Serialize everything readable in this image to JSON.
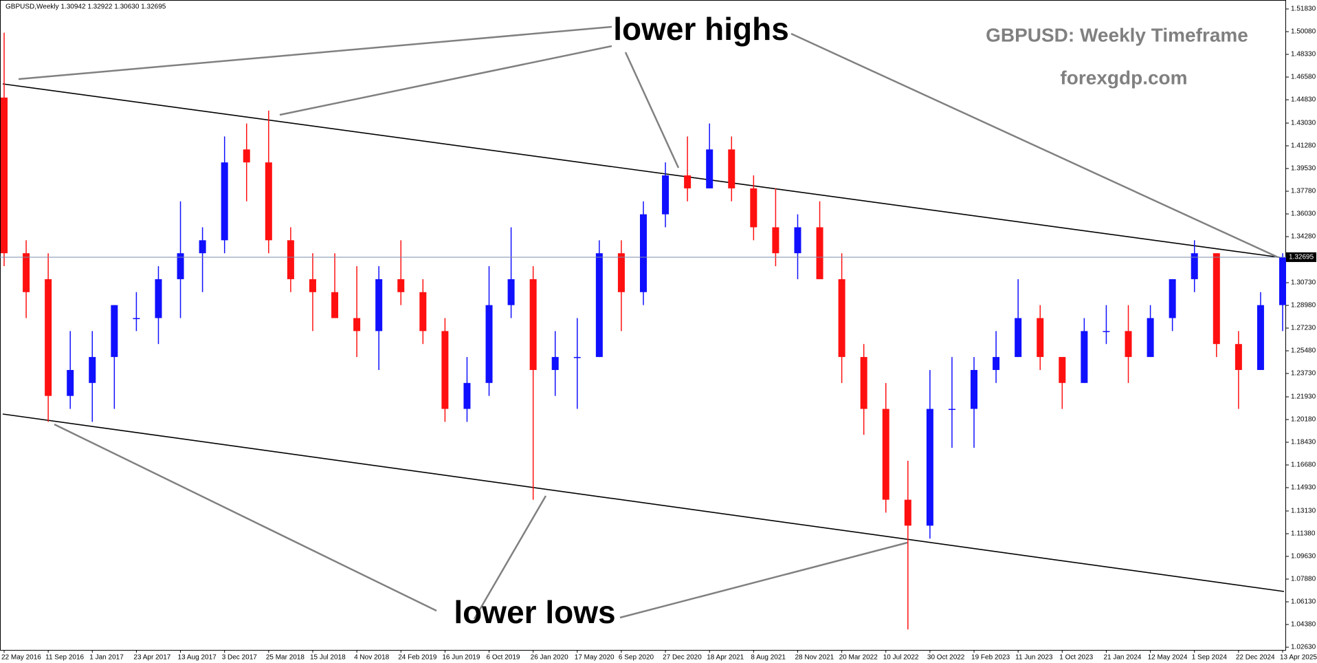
{
  "header": "GBPUSD,Weekly  1.30942 1.32922 1.30630 1.32695",
  "chart_data": {
    "type": "candlestick",
    "title": "GBPUSD: Weekly Timeframe",
    "subtitle": "forexgdp.com",
    "annotations": [
      "lower highs",
      "lower lows"
    ],
    "categories": [
      "22 May 2016",
      null,
      "11 Sep 2016",
      null,
      "1 Jan 2017",
      null,
      "23 Apr 2017",
      null,
      "13 Aug 2017",
      null,
      "3 Dec 2017",
      null,
      "25 Mar 2018",
      null,
      "15 Jul 2018",
      null,
      "4 Nov 2018",
      null,
      "24 Feb 2019",
      null,
      "16 Jun 2019",
      null,
      "6 Oct 2019",
      null,
      "26 Jan 2020",
      null,
      "17 May 2020",
      null,
      "6 Sep 2020",
      null,
      "27 Dec 2020",
      null,
      "18 Apr 2021",
      null,
      "8 Aug 2021",
      null,
      "28 Nov 2021",
      null,
      "20 Mar 2022",
      null,
      "10 Jul 2022",
      null,
      "30 Oct 2022",
      null,
      "19 Feb 2023",
      null,
      "11 Jun 2023",
      null,
      "1 Oct 2023",
      null,
      "21 Jan 2024",
      null,
      "12 May 2024",
      null,
      "1 Sep 2024",
      null,
      "22 Dec 2024",
      null,
      "13 Apr 2025"
    ],
    "open": [
      1.45,
      1.33,
      1.31,
      1.22,
      1.23,
      1.25,
      1.28,
      1.28,
      1.31,
      1.33,
      1.34,
      1.41,
      1.4,
      1.34,
      1.31,
      1.3,
      1.28,
      1.27,
      1.31,
      1.3,
      1.27,
      1.21,
      1.23,
      1.29,
      1.31,
      1.24,
      1.25,
      1.25,
      1.33,
      1.3,
      1.36,
      1.39,
      1.38,
      1.41,
      1.38,
      1.35,
      1.33,
      1.35,
      1.31,
      1.25,
      1.21,
      1.14,
      1.12,
      1.21,
      1.21,
      1.24,
      1.25,
      1.28,
      1.25,
      1.23,
      1.27,
      1.27,
      1.25,
      1.28,
      1.31,
      1.33,
      1.26,
      1.24,
      1.29
    ],
    "high": [
      1.5,
      1.34,
      1.33,
      1.27,
      1.27,
      1.29,
      1.3,
      1.32,
      1.37,
      1.35,
      1.42,
      1.43,
      1.44,
      1.35,
      1.33,
      1.33,
      1.32,
      1.32,
      1.34,
      1.31,
      1.28,
      1.25,
      1.32,
      1.35,
      1.32,
      1.27,
      1.28,
      1.34,
      1.34,
      1.37,
      1.4,
      1.42,
      1.43,
      1.42,
      1.39,
      1.38,
      1.36,
      1.37,
      1.33,
      1.26,
      1.23,
      1.17,
      1.24,
      1.25,
      1.25,
      1.27,
      1.31,
      1.29,
      1.25,
      1.28,
      1.29,
      1.29,
      1.29,
      1.31,
      1.34,
      1.33,
      1.27,
      1.3,
      1.33
    ],
    "low": [
      1.32,
      1.28,
      1.2,
      1.21,
      1.2,
      1.21,
      1.27,
      1.26,
      1.28,
      1.3,
      1.33,
      1.37,
      1.33,
      1.3,
      1.27,
      1.28,
      1.25,
      1.24,
      1.29,
      1.26,
      1.2,
      1.2,
      1.22,
      1.28,
      1.14,
      1.22,
      1.21,
      1.25,
      1.27,
      1.29,
      1.35,
      1.37,
      1.38,
      1.37,
      1.34,
      1.32,
      1.31,
      1.31,
      1.23,
      1.19,
      1.13,
      1.04,
      1.11,
      1.18,
      1.18,
      1.23,
      1.25,
      1.24,
      1.21,
      1.23,
      1.26,
      1.23,
      1.25,
      1.27,
      1.3,
      1.25,
      1.21,
      1.24,
      1.27
    ],
    "close": [
      1.33,
      1.3,
      1.22,
      1.24,
      1.25,
      1.29,
      1.28,
      1.31,
      1.33,
      1.34,
      1.4,
      1.4,
      1.34,
      1.31,
      1.3,
      1.28,
      1.27,
      1.31,
      1.3,
      1.27,
      1.21,
      1.23,
      1.29,
      1.31,
      1.24,
      1.25,
      1.25,
      1.33,
      1.3,
      1.36,
      1.39,
      1.38,
      1.41,
      1.38,
      1.35,
      1.33,
      1.35,
      1.31,
      1.25,
      1.21,
      1.14,
      1.12,
      1.21,
      1.21,
      1.24,
      1.25,
      1.28,
      1.25,
      1.23,
      1.27,
      1.27,
      1.25,
      1.28,
      1.31,
      1.33,
      1.26,
      1.24,
      1.29,
      1.32695
    ],
    "up_color": "#1010ff",
    "down_color": "#ff1010",
    "current_price": 1.32695,
    "ylim": [
      1.0242,
      1.5252
    ],
    "yticks": [
      {
        "value": 1.0263,
        "label": "1.02630"
      },
      {
        "value": 1.0438,
        "label": "1.04380"
      },
      {
        "value": 1.0613,
        "label": "1.06130"
      },
      {
        "value": 1.0788,
        "label": "1.07880"
      },
      {
        "value": 1.0963,
        "label": "1.09630"
      },
      {
        "value": 1.1138,
        "label": "1.11380"
      },
      {
        "value": 1.1313,
        "label": "1.13130"
      },
      {
        "value": 1.1493,
        "label": "1.14930"
      },
      {
        "value": 1.1668,
        "label": "1.16680"
      },
      {
        "value": 1.1843,
        "label": "1.18430"
      },
      {
        "value": 1.2018,
        "label": "1.20180"
      },
      {
        "value": 1.2193,
        "label": "1.21930"
      },
      {
        "value": 1.2373,
        "label": "1.23730"
      },
      {
        "value": 1.2548,
        "label": "1.25480"
      },
      {
        "value": 1.2723,
        "label": "1.27230"
      },
      {
        "value": 1.2898,
        "label": "1.28980"
      },
      {
        "value": 1.3073,
        "label": "1.30730"
      },
      {
        "value": 1.3428,
        "label": "1.34280"
      },
      {
        "value": 1.3603,
        "label": "1.36030"
      },
      {
        "value": 1.3778,
        "label": "1.37780"
      },
      {
        "value": 1.3953,
        "label": "1.39530"
      },
      {
        "value": 1.4128,
        "label": "1.41280"
      },
      {
        "value": 1.4303,
        "label": "1.43030"
      },
      {
        "value": 1.4483,
        "label": "1.44830"
      },
      {
        "value": 1.4658,
        "label": "1.46580"
      },
      {
        "value": 1.4833,
        "label": "1.48330"
      },
      {
        "value": 1.5008,
        "label": "1.50080"
      },
      {
        "value": 1.5183,
        "label": "1.51830"
      }
    ]
  }
}
